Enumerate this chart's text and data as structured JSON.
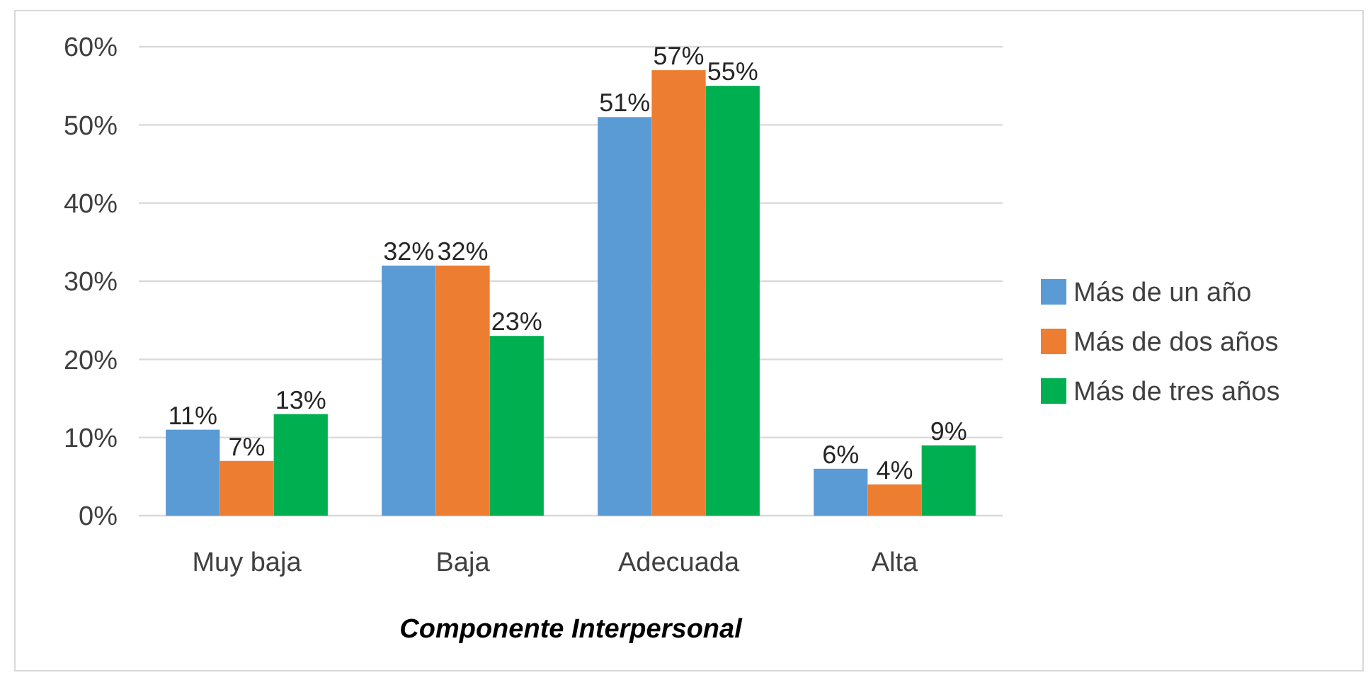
{
  "chart_data": {
    "type": "bar",
    "xlabel": "Componente Interpersonal",
    "categories": [
      "Muy baja",
      "Baja",
      "Adecuada",
      "Alta"
    ],
    "series": [
      {
        "name": "Más de un año",
        "color": "#5b9bd5",
        "values": [
          11,
          32,
          51,
          6
        ],
        "value_labels": [
          "11%",
          "32%",
          "51%",
          "6%"
        ]
      },
      {
        "name": "Más de dos años",
        "color": "#ed7d31",
        "values": [
          7,
          32,
          57,
          4
        ],
        "value_labels": [
          "7%",
          "32%",
          "57%",
          "4%"
        ]
      },
      {
        "name": "Más de tres años",
        "color": "#00b050",
        "values": [
          13,
          23,
          55,
          9
        ],
        "value_labels": [
          "13%",
          "23%",
          "55%",
          "9%"
        ]
      }
    ],
    "ylim": [
      0,
      60
    ],
    "yticks": [
      {
        "value": 0,
        "label": "0%"
      },
      {
        "value": 10,
        "label": "10%"
      },
      {
        "value": 20,
        "label": "20%"
      },
      {
        "value": 30,
        "label": "30%"
      },
      {
        "value": 40,
        "label": "40%"
      },
      {
        "value": 50,
        "label": "50%"
      },
      {
        "value": 60,
        "label": "60%"
      }
    ],
    "grid": "y",
    "legend": "right"
  }
}
